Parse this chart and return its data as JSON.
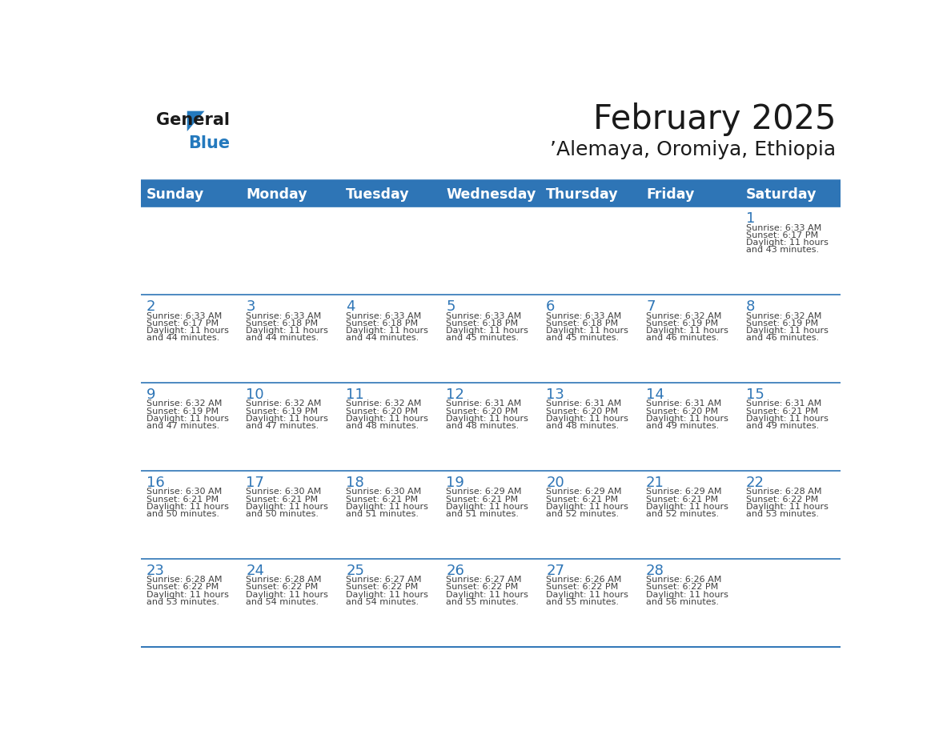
{
  "title": "February 2025",
  "subtitle": "’Alemaya, Oromiya, Ethiopia",
  "days_of_week": [
    "Sunday",
    "Monday",
    "Tuesday",
    "Wednesday",
    "Thursday",
    "Friday",
    "Saturday"
  ],
  "header_bg": "#2E75B6",
  "header_text_color": "#FFFFFF",
  "day_number_color": "#2E75B6",
  "text_color": "#404040",
  "line_color": "#2E75B6",
  "logo_text_color": "#1a1a1a",
  "logo_blue_color": "#2479BD",
  "calendar_data": [
    [
      null,
      null,
      null,
      null,
      null,
      null,
      {
        "day": 1,
        "sunrise": "6:33 AM",
        "sunset": "6:17 PM",
        "daylight": "11 hours and 43 minutes."
      }
    ],
    [
      {
        "day": 2,
        "sunrise": "6:33 AM",
        "sunset": "6:17 PM",
        "daylight": "11 hours and 44 minutes."
      },
      {
        "day": 3,
        "sunrise": "6:33 AM",
        "sunset": "6:18 PM",
        "daylight": "11 hours and 44 minutes."
      },
      {
        "day": 4,
        "sunrise": "6:33 AM",
        "sunset": "6:18 PM",
        "daylight": "11 hours and 44 minutes."
      },
      {
        "day": 5,
        "sunrise": "6:33 AM",
        "sunset": "6:18 PM",
        "daylight": "11 hours and 45 minutes."
      },
      {
        "day": 6,
        "sunrise": "6:33 AM",
        "sunset": "6:18 PM",
        "daylight": "11 hours and 45 minutes."
      },
      {
        "day": 7,
        "sunrise": "6:32 AM",
        "sunset": "6:19 PM",
        "daylight": "11 hours and 46 minutes."
      },
      {
        "day": 8,
        "sunrise": "6:32 AM",
        "sunset": "6:19 PM",
        "daylight": "11 hours and 46 minutes."
      }
    ],
    [
      {
        "day": 9,
        "sunrise": "6:32 AM",
        "sunset": "6:19 PM",
        "daylight": "11 hours and 47 minutes."
      },
      {
        "day": 10,
        "sunrise": "6:32 AM",
        "sunset": "6:19 PM",
        "daylight": "11 hours and 47 minutes."
      },
      {
        "day": 11,
        "sunrise": "6:32 AM",
        "sunset": "6:20 PM",
        "daylight": "11 hours and 48 minutes."
      },
      {
        "day": 12,
        "sunrise": "6:31 AM",
        "sunset": "6:20 PM",
        "daylight": "11 hours and 48 minutes."
      },
      {
        "day": 13,
        "sunrise": "6:31 AM",
        "sunset": "6:20 PM",
        "daylight": "11 hours and 48 minutes."
      },
      {
        "day": 14,
        "sunrise": "6:31 AM",
        "sunset": "6:20 PM",
        "daylight": "11 hours and 49 minutes."
      },
      {
        "day": 15,
        "sunrise": "6:31 AM",
        "sunset": "6:21 PM",
        "daylight": "11 hours and 49 minutes."
      }
    ],
    [
      {
        "day": 16,
        "sunrise": "6:30 AM",
        "sunset": "6:21 PM",
        "daylight": "11 hours and 50 minutes."
      },
      {
        "day": 17,
        "sunrise": "6:30 AM",
        "sunset": "6:21 PM",
        "daylight": "11 hours and 50 minutes."
      },
      {
        "day": 18,
        "sunrise": "6:30 AM",
        "sunset": "6:21 PM",
        "daylight": "11 hours and 51 minutes."
      },
      {
        "day": 19,
        "sunrise": "6:29 AM",
        "sunset": "6:21 PM",
        "daylight": "11 hours and 51 minutes."
      },
      {
        "day": 20,
        "sunrise": "6:29 AM",
        "sunset": "6:21 PM",
        "daylight": "11 hours and 52 minutes."
      },
      {
        "day": 21,
        "sunrise": "6:29 AM",
        "sunset": "6:21 PM",
        "daylight": "11 hours and 52 minutes."
      },
      {
        "day": 22,
        "sunrise": "6:28 AM",
        "sunset": "6:22 PM",
        "daylight": "11 hours and 53 minutes."
      }
    ],
    [
      {
        "day": 23,
        "sunrise": "6:28 AM",
        "sunset": "6:22 PM",
        "daylight": "11 hours and 53 minutes."
      },
      {
        "day": 24,
        "sunrise": "6:28 AM",
        "sunset": "6:22 PM",
        "daylight": "11 hours and 54 minutes."
      },
      {
        "day": 25,
        "sunrise": "6:27 AM",
        "sunset": "6:22 PM",
        "daylight": "11 hours and 54 minutes."
      },
      {
        "day": 26,
        "sunrise": "6:27 AM",
        "sunset": "6:22 PM",
        "daylight": "11 hours and 55 minutes."
      },
      {
        "day": 27,
        "sunrise": "6:26 AM",
        "sunset": "6:22 PM",
        "daylight": "11 hours and 55 minutes."
      },
      {
        "day": 28,
        "sunrise": "6:26 AM",
        "sunset": "6:22 PM",
        "daylight": "11 hours and 56 minutes."
      },
      null
    ]
  ]
}
